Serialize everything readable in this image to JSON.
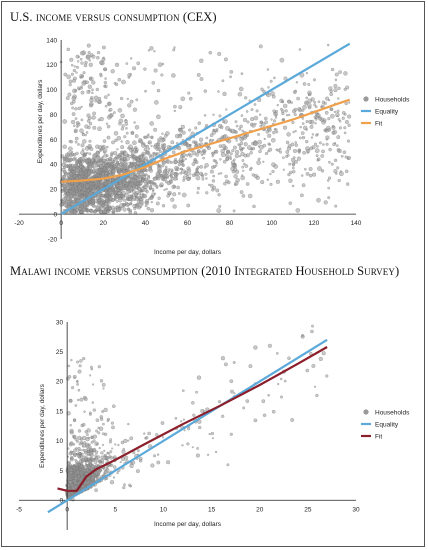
{
  "page": {
    "title_us": "U.S. income versus consumption (CEX)",
    "title_malawi": "Malawi income versus consumption (2010 Integrated Household Survey)"
  },
  "colors": {
    "households": "#9a9a9a",
    "equality": "#5aa9da",
    "fit_us": "#f0a04b",
    "fit_malawi": "#8b1e2b"
  },
  "chart_data": [
    {
      "type": "scatter",
      "title": "U.S. income versus consumption (CEX)",
      "xlabel": "Income per day, dollars",
      "ylabel": "Expenditures per day, dollars",
      "xlim": [
        -20,
        140
      ],
      "ylim": [
        -20,
        140
      ],
      "xticks": [
        -20,
        0,
        20,
        40,
        60,
        80,
        100,
        120,
        140
      ],
      "yticks": [
        -20,
        0,
        20,
        40,
        60,
        80,
        100,
        120,
        140
      ],
      "legend_position": "right",
      "series": [
        {
          "name": "Households",
          "kind": "scatter",
          "distribution": "dense cloud of households, concentrated at incomes 0-60 and expenditures 0-60, spreading up to 140 on both axes"
        },
        {
          "name": "Equality",
          "kind": "line",
          "x": [
            0,
            137
          ],
          "y": [
            0,
            137
          ]
        },
        {
          "name": "Fit",
          "kind": "line",
          "x": [
            0,
            10,
            20,
            30,
            40,
            50,
            60,
            70,
            80,
            90,
            100,
            110,
            120,
            130,
            137
          ],
          "y": [
            26,
            27,
            28.5,
            32,
            38,
            45,
            51,
            56,
            61,
            66,
            71,
            76,
            82,
            88,
            92
          ]
        }
      ]
    },
    {
      "type": "scatter",
      "title": "Malawi income versus consumption (2010 Integrated Household Survey)",
      "xlabel": "Income per day, dollars",
      "ylabel": "Expenditures per day, dollars",
      "xlim": [
        -5,
        30
      ],
      "ylim": [
        -5,
        30
      ],
      "xticks": [
        -5,
        0,
        5,
        10,
        15,
        20,
        25,
        30
      ],
      "yticks": [
        0,
        5,
        10,
        15,
        20,
        25,
        30
      ],
      "legend_position": "right",
      "series": [
        {
          "name": "Households",
          "kind": "scatter",
          "distribution": "very dense cluster of households near the origin (income 0-3, expenditure 0-6), sparse points up to about 27"
        },
        {
          "name": "Equality",
          "kind": "line",
          "x": [
            -2,
            27
          ],
          "y": [
            -2,
            27
          ]
        },
        {
          "name": "Fit",
          "kind": "line",
          "x": [
            -1,
            0,
            1,
            1.5,
            2,
            3,
            5,
            8,
            12,
            16,
            20,
            24,
            27
          ],
          "y": [
            2,
            1.6,
            1.6,
            2.8,
            4,
            5.2,
            6.8,
            9.4,
            12.8,
            16,
            19.4,
            23,
            25.8
          ]
        }
      ]
    }
  ]
}
